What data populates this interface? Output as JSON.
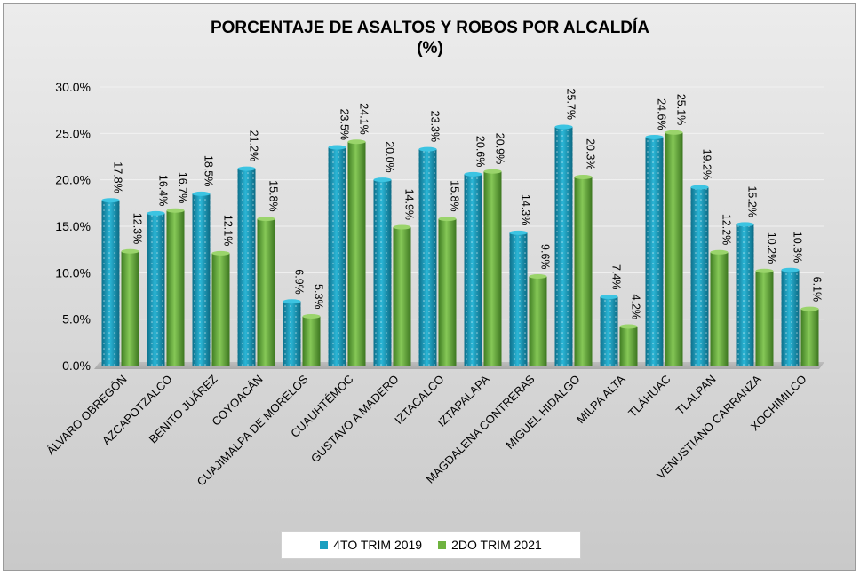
{
  "chart_data": {
    "type": "bar",
    "title": "PORCENTAJE DE ASALTOS Y ROBOS POR ALCALDÍA",
    "subtitle": "(%)",
    "categories": [
      "ÁLVARO OBREGÓN",
      "AZCAPOTZALCO",
      "BENITO JUÁREZ",
      "COYOACÁN",
      "CUAJIMALPA DE MORELOS",
      "CUAUHTÉMOC",
      "GUSTAVO A MADERO",
      "IZTACALCO",
      "IZTAPALAPA",
      "MAGDALENA CONTRERAS",
      "MIGUEL HIDALGO",
      "MILPA ALTA",
      "TLÁHUAC",
      "TLALPAN",
      "VENUSTIANO CARRANZA",
      "XOCHIMILCO"
    ],
    "series": [
      {
        "name": "4TO TRIM 2019",
        "color": "#1a9fc0",
        "values": [
          17.8,
          16.4,
          18.5,
          21.2,
          6.9,
          23.5,
          20.0,
          23.3,
          20.6,
          14.3,
          25.7,
          7.4,
          24.6,
          19.2,
          15.2,
          10.3
        ]
      },
      {
        "name": "2DO TRIM 2021",
        "color": "#6fb33f",
        "values": [
          12.3,
          16.7,
          12.1,
          15.8,
          5.3,
          24.1,
          14.9,
          15.8,
          20.9,
          9.6,
          20.3,
          4.2,
          25.1,
          12.2,
          10.2,
          6.1
        ]
      }
    ],
    "ylim": [
      0,
      30
    ],
    "yticks": [
      "0.0%",
      "5.0%",
      "10.0%",
      "15.0%",
      "20.0%",
      "25.0%",
      "30.0%"
    ],
    "grid": true,
    "legend_position": "bottom"
  }
}
